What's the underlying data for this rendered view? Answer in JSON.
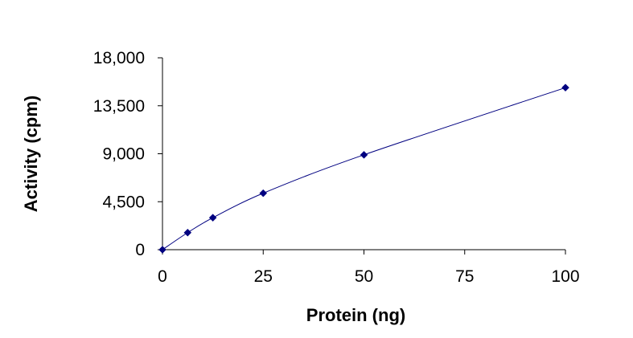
{
  "chart_data": {
    "type": "line",
    "title": "",
    "xlabel": "Protein (ng)",
    "ylabel": "Activity (cpm)",
    "xlim": [
      0,
      100
    ],
    "ylim": [
      0,
      18000
    ],
    "x_ticks": [
      0,
      25,
      50,
      75,
      100
    ],
    "x_tick_labels": [
      "0",
      "25",
      "50",
      "75",
      "100"
    ],
    "y_ticks": [
      0,
      4500,
      9000,
      13500,
      18000
    ],
    "y_tick_labels": [
      "0",
      "4,500",
      "9,000",
      "13,500",
      "18,000"
    ],
    "grid": false,
    "legend": "none",
    "series": [
      {
        "x": [
          0,
          6.25,
          12.5,
          25,
          50,
          100
        ],
        "y": [
          0,
          1600,
          3000,
          5300,
          8900,
          15200
        ],
        "color": "#000080",
        "marker": "diamond",
        "smooth": true
      }
    ]
  }
}
